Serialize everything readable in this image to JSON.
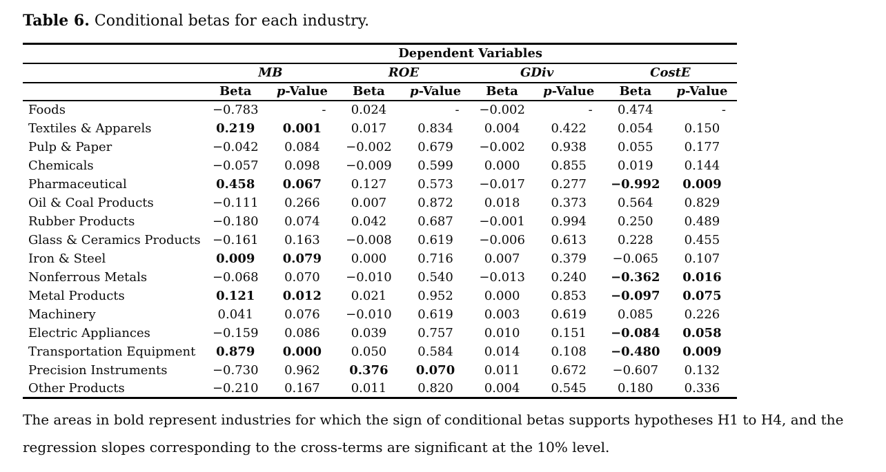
{
  "page": {
    "background": "#ffffff",
    "text_color": "#0b0b0b",
    "rule_color": "#000000"
  },
  "title": {
    "label": "Table 6.",
    "text": "Conditional betas for each industry."
  },
  "table": {
    "top_header": "Dependent Variables",
    "groups": [
      {
        "label": "MB"
      },
      {
        "label": "ROE"
      },
      {
        "label": "GDiv"
      },
      {
        "label": "CostE"
      }
    ],
    "subheader": {
      "beta": "Beta",
      "p_italic": "p",
      "p_rest": "-Value"
    },
    "rows": [
      {
        "industry": "Foods",
        "values": [
          "−0.783",
          "-",
          "0.024",
          "-",
          "−0.002",
          "-",
          "0.474",
          "-"
        ],
        "bold": [
          false,
          false,
          false,
          false,
          false,
          false,
          false,
          false
        ]
      },
      {
        "industry": "Textiles & Apparels",
        "values": [
          "0.219",
          "0.001",
          "0.017",
          "0.834",
          "0.004",
          "0.422",
          "0.054",
          "0.150"
        ],
        "bold": [
          true,
          true,
          false,
          false,
          false,
          false,
          false,
          false
        ]
      },
      {
        "industry": "Pulp & Paper",
        "values": [
          "−0.042",
          "0.084",
          "−0.002",
          "0.679",
          "−0.002",
          "0.938",
          "0.055",
          "0.177"
        ],
        "bold": [
          false,
          false,
          false,
          false,
          false,
          false,
          false,
          false
        ]
      },
      {
        "industry": "Chemicals",
        "values": [
          "−0.057",
          "0.098",
          "−0.009",
          "0.599",
          "0.000",
          "0.855",
          "0.019",
          "0.144"
        ],
        "bold": [
          false,
          false,
          false,
          false,
          false,
          false,
          false,
          false
        ]
      },
      {
        "industry": "Pharmaceutical",
        "values": [
          "0.458",
          "0.067",
          "0.127",
          "0.573",
          "−0.017",
          "0.277",
          "−0.992",
          "0.009"
        ],
        "bold": [
          true,
          true,
          false,
          false,
          false,
          false,
          true,
          true
        ]
      },
      {
        "industry": "Oil & Coal Products",
        "values": [
          "−0.111",
          "0.266",
          "0.007",
          "0.872",
          "0.018",
          "0.373",
          "0.564",
          "0.829"
        ],
        "bold": [
          false,
          false,
          false,
          false,
          false,
          false,
          false,
          false
        ]
      },
      {
        "industry": "Rubber Products",
        "values": [
          "−0.180",
          "0.074",
          "0.042",
          "0.687",
          "−0.001",
          "0.994",
          "0.250",
          "0.489"
        ],
        "bold": [
          false,
          false,
          false,
          false,
          false,
          false,
          false,
          false
        ]
      },
      {
        "industry": "Glass & Ceramics Products",
        "values": [
          "−0.161",
          "0.163",
          "−0.008",
          "0.619",
          "−0.006",
          "0.613",
          "0.228",
          "0.455"
        ],
        "bold": [
          false,
          false,
          false,
          false,
          false,
          false,
          false,
          false
        ]
      },
      {
        "industry": "Iron & Steel",
        "values": [
          "0.009",
          "0.079",
          "0.000",
          "0.716",
          "0.007",
          "0.379",
          "−0.065",
          "0.107"
        ],
        "bold": [
          true,
          true,
          false,
          false,
          false,
          false,
          false,
          false
        ]
      },
      {
        "industry": "Nonferrous Metals",
        "values": [
          "−0.068",
          "0.070",
          "−0.010",
          "0.540",
          "−0.013",
          "0.240",
          "−0.362",
          "0.016"
        ],
        "bold": [
          false,
          false,
          false,
          false,
          false,
          false,
          true,
          true
        ]
      },
      {
        "industry": "Metal Products",
        "values": [
          "0.121",
          "0.012",
          "0.021",
          "0.952",
          "0.000",
          "0.853",
          "−0.097",
          "0.075"
        ],
        "bold": [
          true,
          true,
          false,
          false,
          false,
          false,
          true,
          true
        ]
      },
      {
        "industry": "Machinery",
        "values": [
          "0.041",
          "0.076",
          "−0.010",
          "0.619",
          "0.003",
          "0.619",
          "0.085",
          "0.226"
        ],
        "bold": [
          false,
          false,
          false,
          false,
          false,
          false,
          false,
          false
        ]
      },
      {
        "industry": "Electric Appliances",
        "values": [
          "−0.159",
          "0.086",
          "0.039",
          "0.757",
          "0.010",
          "0.151",
          "−0.084",
          "0.058"
        ],
        "bold": [
          false,
          false,
          false,
          false,
          false,
          false,
          true,
          true
        ]
      },
      {
        "industry": "Transportation Equipment",
        "values": [
          "0.879",
          "0.000",
          "0.050",
          "0.584",
          "0.014",
          "0.108",
          "−0.480",
          "0.009"
        ],
        "bold": [
          true,
          true,
          false,
          false,
          false,
          false,
          true,
          true
        ]
      },
      {
        "industry": "Precision Instruments",
        "values": [
          "−0.730",
          "0.962",
          "0.376",
          "0.070",
          "0.011",
          "0.672",
          "−0.607",
          "0.132"
        ],
        "bold": [
          false,
          false,
          true,
          true,
          false,
          false,
          false,
          false
        ]
      },
      {
        "industry": "Other Products",
        "values": [
          "−0.210",
          "0.167",
          "0.011",
          "0.820",
          "0.004",
          "0.545",
          "0.180",
          "0.336"
        ],
        "bold": [
          false,
          false,
          false,
          false,
          false,
          false,
          false,
          false
        ]
      }
    ]
  },
  "note": {
    "line1": "The areas in bold represent industries for which the sign of conditional betas supports hypotheses H1 to H4, and the",
    "line2": "regression slopes corresponding to the cross-terms are significant at the 10% level."
  }
}
